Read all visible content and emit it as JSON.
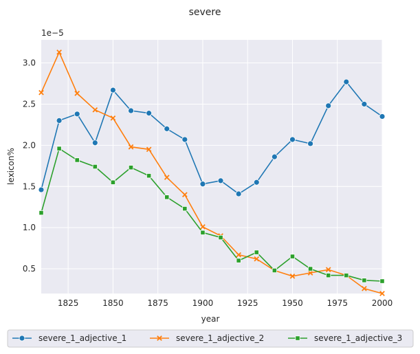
{
  "chart_data": {
    "type": "line",
    "title": "severe",
    "xlabel": "year",
    "ylabel": "lexicon%",
    "y_offset_label": "1e−5",
    "xlim": [
      1810,
      2000
    ],
    "ylim": [
      0.2,
      3.28
    ],
    "grid": true,
    "legend_position": "bottom-outside",
    "x_ticks": [
      1825,
      1850,
      1875,
      1900,
      1925,
      1950,
      1975,
      2000
    ],
    "y_ticks": [
      0.5,
      1.0,
      1.5,
      2.0,
      2.5,
      3.0
    ],
    "x_tick_labels": [
      "1825",
      "1850",
      "1875",
      "1900",
      "1925",
      "1950",
      "1975",
      "2000"
    ],
    "y_tick_labels": [
      "0.5",
      "1.0",
      "1.5",
      "2.0",
      "2.5",
      "3.0"
    ],
    "x": [
      1810,
      1820,
      1830,
      1840,
      1850,
      1860,
      1870,
      1880,
      1890,
      1900,
      1910,
      1920,
      1930,
      1940,
      1950,
      1960,
      1970,
      1980,
      1990,
      2000
    ],
    "series": [
      {
        "name": "severe_1_adjective_1",
        "color": "#1f77b4",
        "marker": "circle",
        "values": [
          1.46,
          2.3,
          2.38,
          2.03,
          2.67,
          2.42,
          2.39,
          2.2,
          2.07,
          1.53,
          1.57,
          1.41,
          1.55,
          1.86,
          2.07,
          2.02,
          2.48,
          2.77,
          2.5,
          2.35
        ]
      },
      {
        "name": "severe_1_adjective_2",
        "color": "#ff7f0e",
        "marker": "x",
        "values": [
          2.64,
          3.13,
          2.63,
          2.43,
          2.33,
          1.98,
          1.95,
          1.61,
          1.4,
          1.01,
          0.9,
          0.67,
          0.62,
          0.48,
          0.41,
          0.45,
          0.49,
          0.42,
          0.26,
          0.2
        ]
      },
      {
        "name": "severe_1_adjective_3",
        "color": "#2ca02c",
        "marker": "square",
        "values": [
          1.18,
          1.96,
          1.82,
          1.74,
          1.55,
          1.73,
          1.63,
          1.37,
          1.23,
          0.94,
          0.88,
          0.6,
          0.7,
          0.48,
          0.65,
          0.5,
          0.42,
          0.42,
          0.36,
          0.35
        ]
      }
    ]
  }
}
